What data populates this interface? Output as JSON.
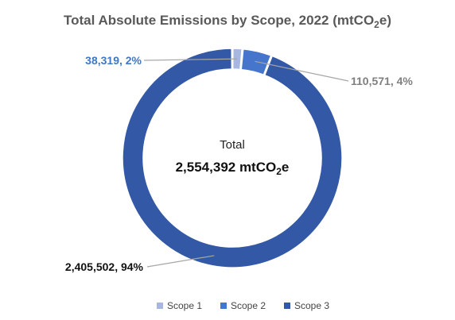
{
  "chart_data": {
    "type": "pie",
    "subtype": "donut",
    "title": "Total Absolute Emissions by Scope, 2022 (mtCO",
    "title_sub": "2",
    "title_tail": "e)",
    "categories": [
      "Scope 1",
      "Scope 2",
      "Scope 3"
    ],
    "values": [
      38319,
      110571,
      2405502
    ],
    "percent_labels": [
      "2%",
      "4%",
      "94%"
    ],
    "value_labels": [
      "38,319, 2%",
      "110,571, 4%",
      "2,405,502, 94%"
    ],
    "colors": [
      "#a7b7df",
      "#4676cc",
      "#3359a6"
    ],
    "label_colors": [
      "#3f77c4",
      "#7f7f7f",
      "#111111"
    ],
    "center": {
      "label": "Total",
      "value": "2,554,392 mtCO",
      "value_sub": "2",
      "value_tail": "e"
    },
    "legend_position": "bottom"
  }
}
